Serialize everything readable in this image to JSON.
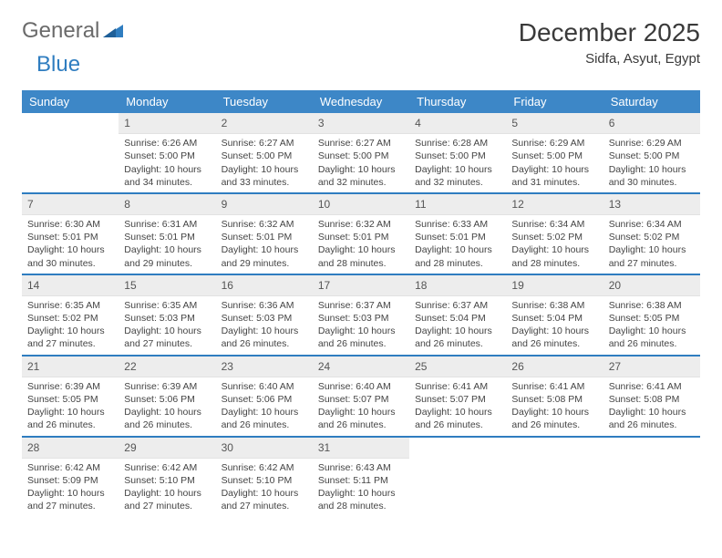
{
  "logo": {
    "word1": "General",
    "word2": "Blue"
  },
  "title": "December 2025",
  "location": "Sidfa, Asyut, Egypt",
  "colors": {
    "header_bg": "#3d87c7",
    "header_fg": "#ffffff",
    "daynum_bg": "#ededed",
    "week_sep": "#2f7dc0",
    "text": "#444444",
    "logo_gray": "#6a6a6a",
    "logo_blue": "#2f7dc0"
  },
  "day_headers": [
    "Sunday",
    "Monday",
    "Tuesday",
    "Wednesday",
    "Thursday",
    "Friday",
    "Saturday"
  ],
  "weeks": [
    [
      {
        "n": "",
        "lines": []
      },
      {
        "n": "1",
        "lines": [
          "Sunrise: 6:26 AM",
          "Sunset: 5:00 PM",
          "Daylight: 10 hours and 34 minutes."
        ]
      },
      {
        "n": "2",
        "lines": [
          "Sunrise: 6:27 AM",
          "Sunset: 5:00 PM",
          "Daylight: 10 hours and 33 minutes."
        ]
      },
      {
        "n": "3",
        "lines": [
          "Sunrise: 6:27 AM",
          "Sunset: 5:00 PM",
          "Daylight: 10 hours and 32 minutes."
        ]
      },
      {
        "n": "4",
        "lines": [
          "Sunrise: 6:28 AM",
          "Sunset: 5:00 PM",
          "Daylight: 10 hours and 32 minutes."
        ]
      },
      {
        "n": "5",
        "lines": [
          "Sunrise: 6:29 AM",
          "Sunset: 5:00 PM",
          "Daylight: 10 hours and 31 minutes."
        ]
      },
      {
        "n": "6",
        "lines": [
          "Sunrise: 6:29 AM",
          "Sunset: 5:00 PM",
          "Daylight: 10 hours and 30 minutes."
        ]
      }
    ],
    [
      {
        "n": "7",
        "lines": [
          "Sunrise: 6:30 AM",
          "Sunset: 5:01 PM",
          "Daylight: 10 hours and 30 minutes."
        ]
      },
      {
        "n": "8",
        "lines": [
          "Sunrise: 6:31 AM",
          "Sunset: 5:01 PM",
          "Daylight: 10 hours and 29 minutes."
        ]
      },
      {
        "n": "9",
        "lines": [
          "Sunrise: 6:32 AM",
          "Sunset: 5:01 PM",
          "Daylight: 10 hours and 29 minutes."
        ]
      },
      {
        "n": "10",
        "lines": [
          "Sunrise: 6:32 AM",
          "Sunset: 5:01 PM",
          "Daylight: 10 hours and 28 minutes."
        ]
      },
      {
        "n": "11",
        "lines": [
          "Sunrise: 6:33 AM",
          "Sunset: 5:01 PM",
          "Daylight: 10 hours and 28 minutes."
        ]
      },
      {
        "n": "12",
        "lines": [
          "Sunrise: 6:34 AM",
          "Sunset: 5:02 PM",
          "Daylight: 10 hours and 28 minutes."
        ]
      },
      {
        "n": "13",
        "lines": [
          "Sunrise: 6:34 AM",
          "Sunset: 5:02 PM",
          "Daylight: 10 hours and 27 minutes."
        ]
      }
    ],
    [
      {
        "n": "14",
        "lines": [
          "Sunrise: 6:35 AM",
          "Sunset: 5:02 PM",
          "Daylight: 10 hours and 27 minutes."
        ]
      },
      {
        "n": "15",
        "lines": [
          "Sunrise: 6:35 AM",
          "Sunset: 5:03 PM",
          "Daylight: 10 hours and 27 minutes."
        ]
      },
      {
        "n": "16",
        "lines": [
          "Sunrise: 6:36 AM",
          "Sunset: 5:03 PM",
          "Daylight: 10 hours and 26 minutes."
        ]
      },
      {
        "n": "17",
        "lines": [
          "Sunrise: 6:37 AM",
          "Sunset: 5:03 PM",
          "Daylight: 10 hours and 26 minutes."
        ]
      },
      {
        "n": "18",
        "lines": [
          "Sunrise: 6:37 AM",
          "Sunset: 5:04 PM",
          "Daylight: 10 hours and 26 minutes."
        ]
      },
      {
        "n": "19",
        "lines": [
          "Sunrise: 6:38 AM",
          "Sunset: 5:04 PM",
          "Daylight: 10 hours and 26 minutes."
        ]
      },
      {
        "n": "20",
        "lines": [
          "Sunrise: 6:38 AM",
          "Sunset: 5:05 PM",
          "Daylight: 10 hours and 26 minutes."
        ]
      }
    ],
    [
      {
        "n": "21",
        "lines": [
          "Sunrise: 6:39 AM",
          "Sunset: 5:05 PM",
          "Daylight: 10 hours and 26 minutes."
        ]
      },
      {
        "n": "22",
        "lines": [
          "Sunrise: 6:39 AM",
          "Sunset: 5:06 PM",
          "Daylight: 10 hours and 26 minutes."
        ]
      },
      {
        "n": "23",
        "lines": [
          "Sunrise: 6:40 AM",
          "Sunset: 5:06 PM",
          "Daylight: 10 hours and 26 minutes."
        ]
      },
      {
        "n": "24",
        "lines": [
          "Sunrise: 6:40 AM",
          "Sunset: 5:07 PM",
          "Daylight: 10 hours and 26 minutes."
        ]
      },
      {
        "n": "25",
        "lines": [
          "Sunrise: 6:41 AM",
          "Sunset: 5:07 PM",
          "Daylight: 10 hours and 26 minutes."
        ]
      },
      {
        "n": "26",
        "lines": [
          "Sunrise: 6:41 AM",
          "Sunset: 5:08 PM",
          "Daylight: 10 hours and 26 minutes."
        ]
      },
      {
        "n": "27",
        "lines": [
          "Sunrise: 6:41 AM",
          "Sunset: 5:08 PM",
          "Daylight: 10 hours and 26 minutes."
        ]
      }
    ],
    [
      {
        "n": "28",
        "lines": [
          "Sunrise: 6:42 AM",
          "Sunset: 5:09 PM",
          "Daylight: 10 hours and 27 minutes."
        ]
      },
      {
        "n": "29",
        "lines": [
          "Sunrise: 6:42 AM",
          "Sunset: 5:10 PM",
          "Daylight: 10 hours and 27 minutes."
        ]
      },
      {
        "n": "30",
        "lines": [
          "Sunrise: 6:42 AM",
          "Sunset: 5:10 PM",
          "Daylight: 10 hours and 27 minutes."
        ]
      },
      {
        "n": "31",
        "lines": [
          "Sunrise: 6:43 AM",
          "Sunset: 5:11 PM",
          "Daylight: 10 hours and 28 minutes."
        ]
      },
      {
        "n": "",
        "lines": []
      },
      {
        "n": "",
        "lines": []
      },
      {
        "n": "",
        "lines": []
      }
    ]
  ]
}
